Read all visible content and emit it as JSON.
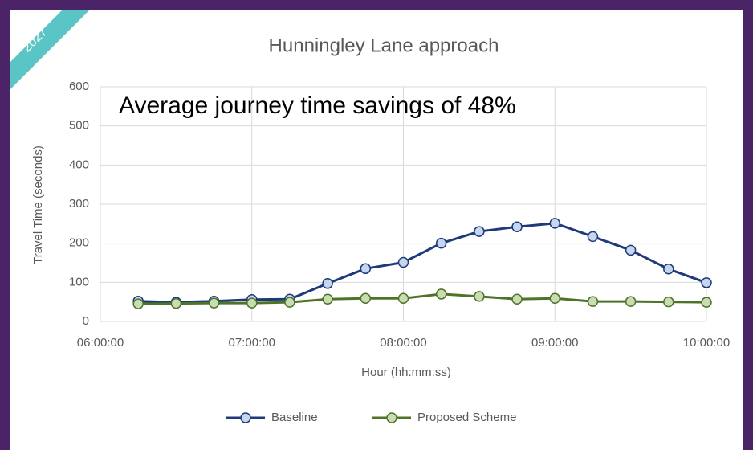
{
  "badge": "2027",
  "chart_data": {
    "type": "line",
    "title": "Hunningley Lane approach",
    "annotation": "Average journey time savings of 48%",
    "xlabel": "Hour (hh:mm:ss)",
    "ylabel": "Travel Time (seconds)",
    "x": [
      "06:15:00",
      "06:30:00",
      "06:45:00",
      "07:00:00",
      "07:15:00",
      "07:30:00",
      "07:45:00",
      "08:00:00",
      "08:15:00",
      "08:30:00",
      "08:45:00",
      "09:00:00",
      "09:15:00",
      "09:30:00",
      "09:45:00",
      "10:00:00"
    ],
    "series": [
      {
        "name": "Baseline",
        "color": "#1f3a7a",
        "marker_fill": "#c7d6ef",
        "values": [
          52,
          49,
          52,
          56,
          57,
          97,
          135,
          151,
          200,
          230,
          242,
          251,
          217,
          182,
          134,
          99
        ]
      },
      {
        "name": "Proposed Scheme",
        "color": "#4e7329",
        "marker_fill": "#c9ddb2",
        "values": [
          45,
          46,
          47,
          47,
          49,
          57,
          59,
          59,
          70,
          64,
          57,
          59,
          51,
          51,
          50,
          49
        ]
      }
    ],
    "xlim": [
      "06:00:00",
      "10:00:00"
    ],
    "xticks": [
      "06:00:00",
      "07:00:00",
      "08:00:00",
      "09:00:00",
      "10:00:00"
    ],
    "ylim": [
      0,
      600
    ],
    "yticks": [
      0,
      100,
      200,
      300,
      400,
      500,
      600
    ],
    "grid": true,
    "legend": "bottom"
  }
}
